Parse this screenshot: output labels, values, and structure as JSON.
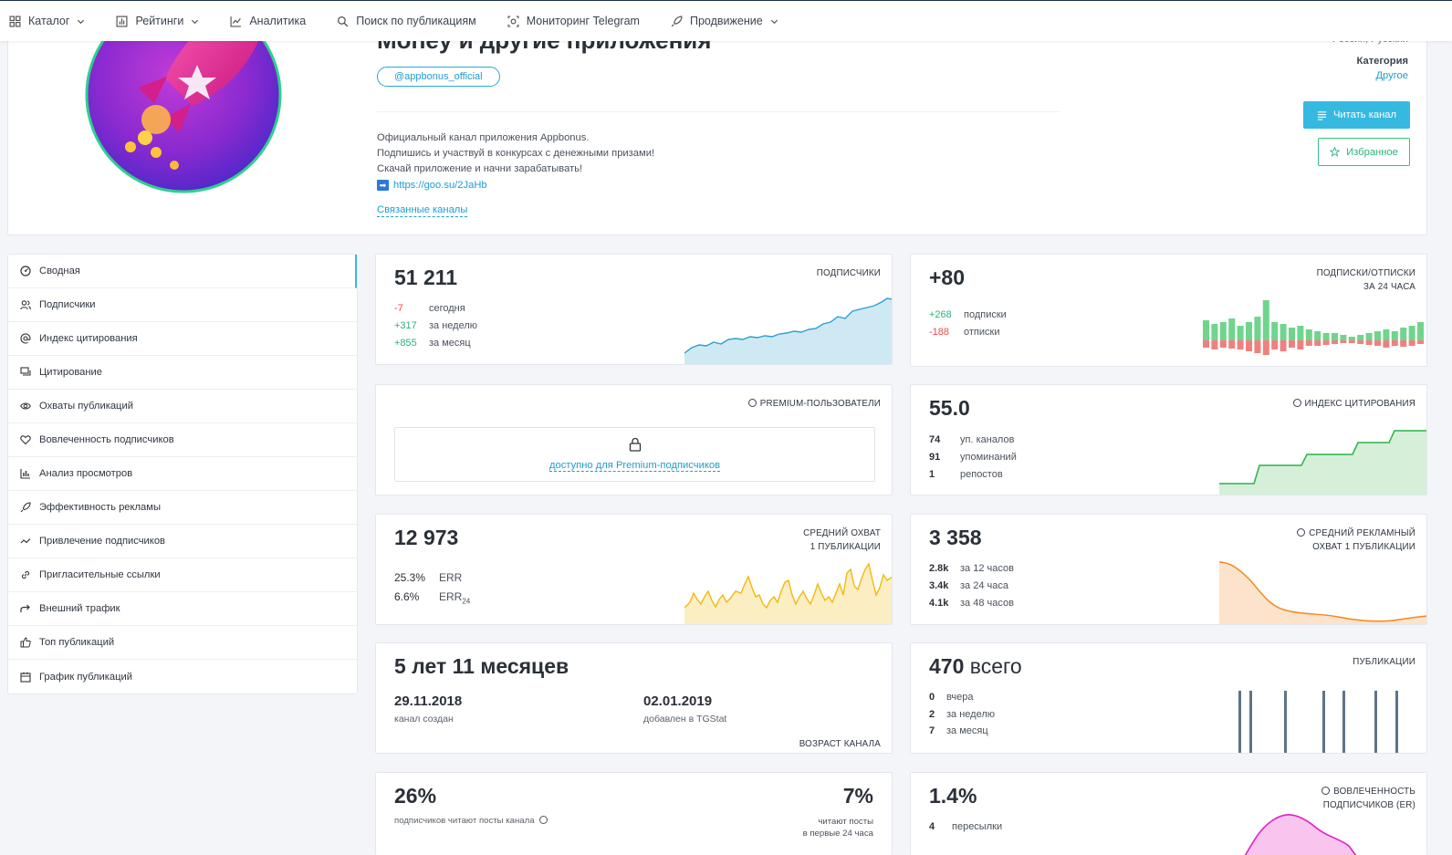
{
  "nav": {
    "items": [
      {
        "label": "Каталог",
        "icon": "grid-icon",
        "dropdown": true
      },
      {
        "label": "Рейтинги",
        "icon": "rating-icon",
        "dropdown": true
      },
      {
        "label": "Аналитика",
        "icon": "analytics-icon",
        "dropdown": false
      },
      {
        "label": "Поиск по публикациям",
        "icon": "search-icon",
        "dropdown": false
      },
      {
        "label": "Мониторинг Telegram",
        "icon": "monitor-icon",
        "dropdown": false
      },
      {
        "label": "Продвижение",
        "icon": "rocket-icon",
        "dropdown": true
      }
    ]
  },
  "channel": {
    "title": "Money и другие приложения",
    "handle": "@appbonus_official",
    "description": [
      "Официальный канал приложения Appbonus.",
      "Подпишись и участвуй в конкурсах с денежными призами!",
      "Скачай приложение и начни зарабатывать!"
    ],
    "link": "https://goo.su/2JaHb",
    "related_label": "Связанные каналы",
    "geo_language": "Россия, Русский",
    "category_label": "Категория",
    "category_value": "Другое",
    "read_button": "Читать канал",
    "favorite_button": "Избранное"
  },
  "sidebar": {
    "items": [
      {
        "label": "Сводная",
        "icon": "summary-icon",
        "active": true
      },
      {
        "label": "Подписчики",
        "icon": "users-icon"
      },
      {
        "label": "Индекс цитирования",
        "icon": "at-icon"
      },
      {
        "label": "Цитирование",
        "icon": "quote-icon"
      },
      {
        "label": "Охваты публикаций",
        "icon": "eye-icon"
      },
      {
        "label": "Вовлеченность подписчиков",
        "icon": "heart-icon"
      },
      {
        "label": "Анализ просмотров",
        "icon": "bar-chart-icon"
      },
      {
        "label": "Эффективность рекламы",
        "icon": "rocket-icon"
      },
      {
        "label": "Привлечение подписчиков",
        "icon": "trend-icon"
      },
      {
        "label": "Пригласительные ссылки",
        "icon": "link-icon"
      },
      {
        "label": "Внешний трафик",
        "icon": "share-icon"
      },
      {
        "label": "Топ публикаций",
        "icon": "thumb-up-icon"
      },
      {
        "label": "График публикаций",
        "icon": "calendar-icon"
      }
    ]
  },
  "subscribers": {
    "value": "51 211",
    "label": "ПОДПИСЧИКИ",
    "rows": [
      {
        "value": "-7",
        "label": "сегодня"
      },
      {
        "value": "+317",
        "label": "за неделю"
      },
      {
        "value": "+855",
        "label": "за месяц"
      }
    ],
    "color": "#29a0d2"
  },
  "subs_unsubs": {
    "value": "+80",
    "label_1": "ПОДПИСКИ/ОТПИСКИ",
    "label_2": "ЗА 24 ЧАСА",
    "rows": [
      {
        "value": "+268",
        "label": "подписки"
      },
      {
        "value": "-188",
        "label": "отписки"
      }
    ],
    "colors": {
      "up": "#6fd58c",
      "down": "#f08080"
    }
  },
  "premium": {
    "label": "PREMIUM-ПОЛЬЗОВАТЕЛИ",
    "locked_text": "доступно для Premium-подписчиков"
  },
  "citation_index": {
    "value": "55.0",
    "label": "ИНДЕКС ЦИТИРОВАНИЯ",
    "rows": [
      {
        "value": "74",
        "label": "уп. каналов"
      },
      {
        "value": "91",
        "label": "упоминаний"
      },
      {
        "value": "1",
        "label": "репостов"
      }
    ],
    "color": "#2bb34a"
  },
  "avg_reach": {
    "value": "12 973",
    "label_1": "СРЕДНИЙ ОХВАТ",
    "label_2": "1 ПУБЛИКАЦИИ",
    "rows": [
      {
        "value": "25.3%",
        "label": "ERR"
      },
      {
        "value": "6.6%",
        "label": "ERR",
        "sub": "24"
      }
    ],
    "color": "#f2b90f"
  },
  "ad_reach": {
    "value": "3 358",
    "label_1": "СРЕДНИЙ РЕКЛАМНЫЙ",
    "label_2": "ОХВАТ 1 ПУБЛИКАЦИИ",
    "rows": [
      {
        "value": "2.8k",
        "label": "за 12 часов"
      },
      {
        "value": "3.4k",
        "label": "за 24 часа"
      },
      {
        "value": "4.1k",
        "label": "за 48 часов"
      }
    ],
    "color": "#f2891f"
  },
  "channel_age": {
    "value": "5 лет 11 месяцев",
    "created_date": "29.11.2018",
    "created_label": "канал создан",
    "added_date": "02.01.2019",
    "added_label": "добавлен в TGStat",
    "label": "ВОЗРАСТ КАНАЛА"
  },
  "publications": {
    "value": "470",
    "unit": "всего",
    "label": "ПУБЛИКАЦИИ",
    "rows": [
      {
        "value": "0",
        "label": "вчера"
      },
      {
        "value": "2",
        "label": "за неделю"
      },
      {
        "value": "7",
        "label": "за месяц"
      }
    ],
    "color": "#5f7386"
  },
  "read_share": {
    "value": "26%",
    "caption": "подписчиков читают посты канала",
    "value_24": "7%",
    "caption_24_1": "читают посты",
    "caption_24_2": "в первые 24 часа"
  },
  "engagement": {
    "value": "1.4%",
    "label_1": "ВОВЛЕЧЕННОСТЬ",
    "label_2": "ПОДПИСЧИКОВ (ER)",
    "rows": [
      {
        "value": "4",
        "label": "пересылки"
      }
    ],
    "color": "#e81bc8"
  }
}
